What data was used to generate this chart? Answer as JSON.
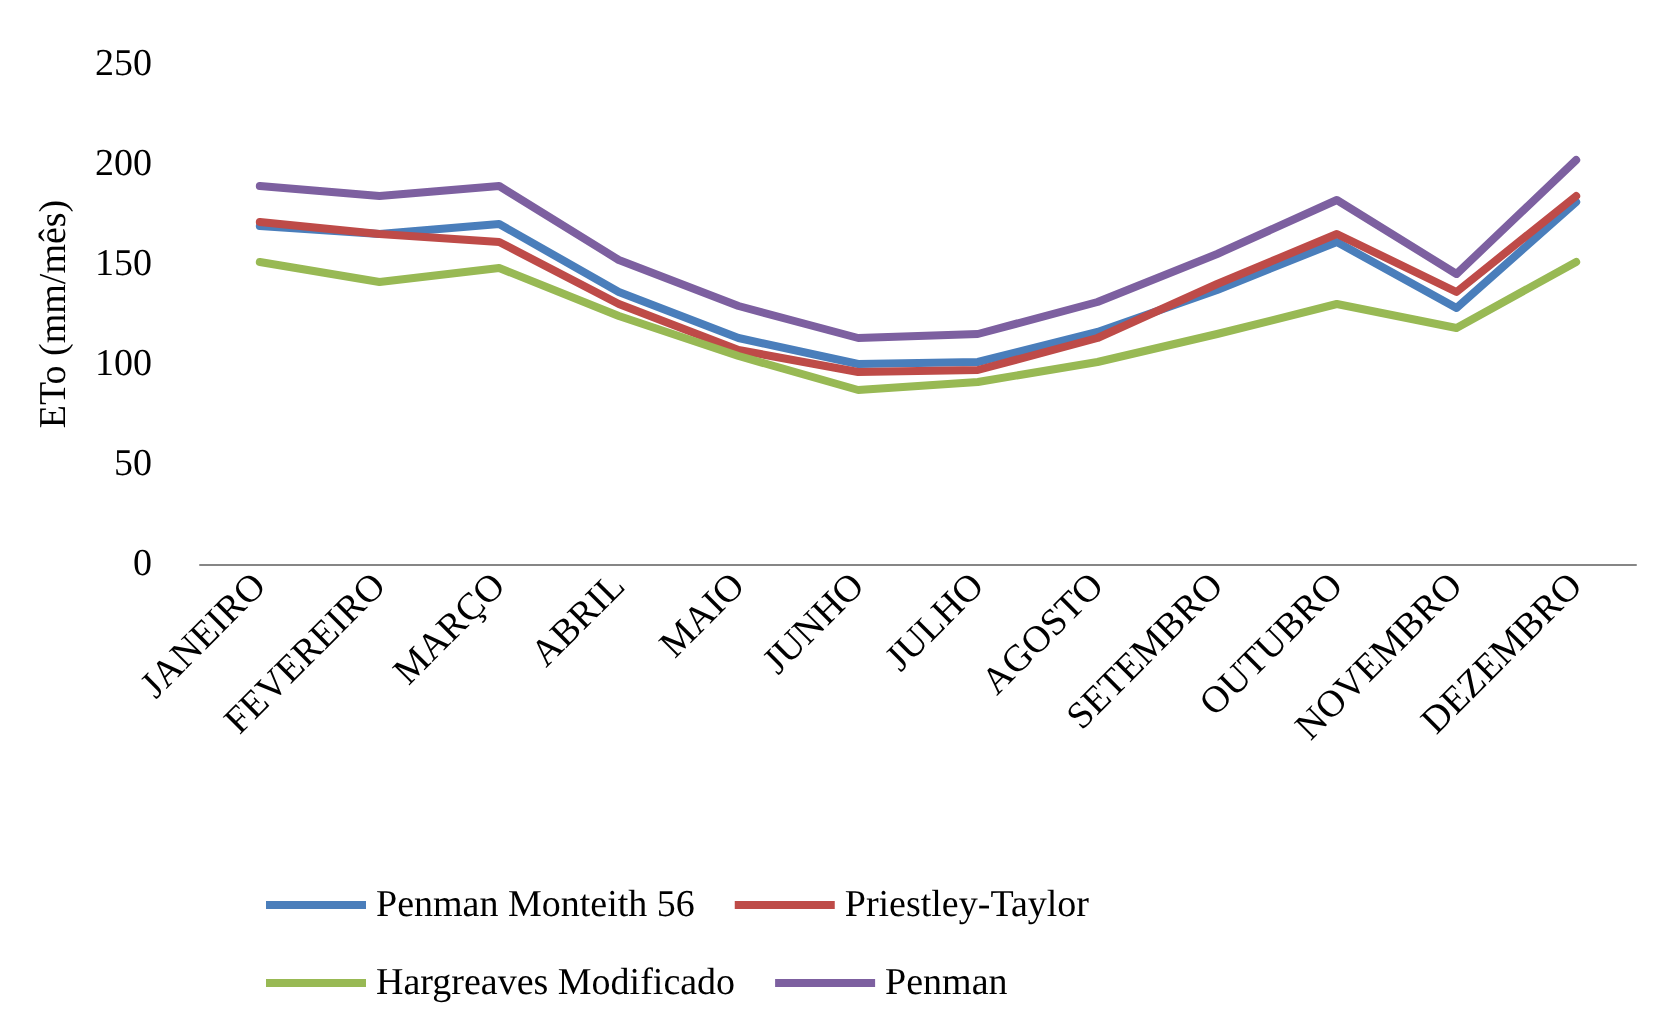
{
  "chart_data": {
    "type": "line",
    "ylabel": "ETo (mm/mês)",
    "categories": [
      "JANEIRO",
      "FEVEREIRO",
      "MARÇO",
      "ABRIL",
      "MAIO",
      "JUNHO",
      "JULHO",
      "AGOSTO",
      "SETEMBRO",
      "OUTUBRO",
      "NOVEMBRO",
      "DEZEMBRO"
    ],
    "series": [
      {
        "name": "Penman Monteith 56",
        "color": "#4a7ebb",
        "values": [
          169,
          165,
          170,
          136,
          113,
          100,
          101,
          116,
          137,
          161,
          128,
          181
        ]
      },
      {
        "name": "Priestley-Taylor",
        "color": "#be4b48",
        "values": [
          171,
          165,
          161,
          130,
          107,
          96,
          97,
          113,
          140,
          165,
          136,
          184
        ]
      },
      {
        "name": "Hargreaves Modificado",
        "color": "#98b954",
        "values": [
          151,
          141,
          148,
          124,
          104,
          87,
          91,
          101,
          115,
          130,
          118,
          151
        ]
      },
      {
        "name": "Penman",
        "color": "#7d60a0",
        "values": [
          189,
          184,
          189,
          152,
          129,
          113,
          115,
          131,
          155,
          182,
          145,
          202
        ]
      }
    ],
    "ylim": [
      0,
      250
    ],
    "yticks": [
      0,
      50,
      100,
      150,
      200,
      250
    ],
    "grid": false,
    "legend": "bottom",
    "marker": "none",
    "line_style": "solid"
  }
}
